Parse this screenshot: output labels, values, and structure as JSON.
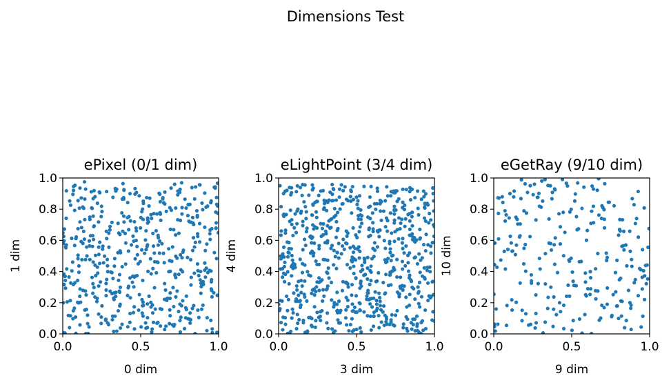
{
  "suptitle": "Dimensions Test",
  "chart_data": [
    {
      "type": "scatter",
      "title": "ePixel (0/1 dim)",
      "xlabel": "0 dim",
      "ylabel": "1 dim",
      "xlim": [
        0,
        1
      ],
      "ylim": [
        0,
        1
      ],
      "xticks": [
        "0.0",
        "0.5",
        "1.0"
      ],
      "yticks": [
        "0.0",
        "0.2",
        "0.4",
        "0.6",
        "0.8",
        "1.0"
      ],
      "grid": false,
      "color": "#1f77b4",
      "n_points": 512,
      "seed": 11
    },
    {
      "type": "scatter",
      "title": "eLightPoint (3/4 dim)",
      "xlabel": "3 dim",
      "ylabel": "4 dim",
      "xlim": [
        0,
        1
      ],
      "ylim": [
        0,
        1
      ],
      "xticks": [
        "0.0",
        "0.5",
        "1.0"
      ],
      "yticks": [
        "0.0",
        "0.2",
        "0.4",
        "0.6",
        "0.8",
        "1.0"
      ],
      "grid": false,
      "color": "#1f77b4",
      "n_points": 700,
      "seed": 23
    },
    {
      "type": "scatter",
      "title": "eGetRay (9/10 dim)",
      "xlabel": "9 dim",
      "ylabel": "10 dim",
      "xlim": [
        0,
        1
      ],
      "ylim": [
        0,
        1
      ],
      "xticks": [
        "0.0",
        "0.5",
        "1.0"
      ],
      "yticks": [
        "0.0",
        "0.2",
        "0.4",
        "0.6",
        "0.8",
        "1.0"
      ],
      "grid": false,
      "color": "#1f77b4",
      "n_points": 256,
      "seed": 37
    }
  ]
}
